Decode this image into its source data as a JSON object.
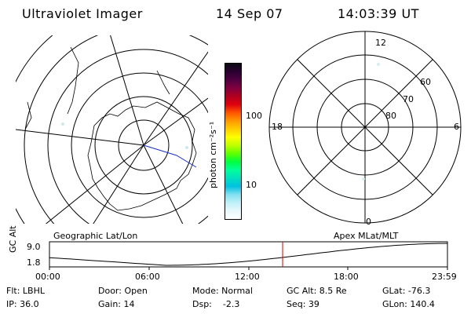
{
  "header": {
    "title": "Ultraviolet Imager",
    "date": "14 Sep 07",
    "time": "14:03:39 UT"
  },
  "left_panel": {
    "caption": "Geographic Lat/Lon"
  },
  "right_panel": {
    "caption": "Apex MLat/MLT",
    "mlt_labels": {
      "top": "12",
      "left": "18",
      "right": "6",
      "bottom": "0"
    },
    "lat_labels": [
      "60",
      "70",
      "80"
    ]
  },
  "colorbar": {
    "unit_label": "photon cm⁻²s⁻¹",
    "ticks": [
      "100",
      "10"
    ],
    "colors": [
      "#0a0a14",
      "#2a0030",
      "#500040",
      "#800040",
      "#b00020",
      "#e00010",
      "#ff5500",
      "#ff9900",
      "#ffcc00",
      "#ffff00",
      "#c0ff00",
      "#60ff00",
      "#00ff40",
      "#00ff99",
      "#00e0c0",
      "#00c0e0",
      "#80e0f0",
      "#c0f0f8",
      "#e8f8fc",
      "#ffffff"
    ]
  },
  "altitude_plot": {
    "ylabel": "GC Alt",
    "y_max": "9.0",
    "y_min": "1.8",
    "x_ticks": [
      "00:00",
      "06:00",
      "12:00",
      "18:00",
      "23:59"
    ],
    "marker_time_hours": 14.06
  },
  "footer": {
    "filter": "Flt: LBHL",
    "ip": "IP: 36.0",
    "door": "Door: Open",
    "gain": "Gain: 14",
    "mode": "Mode: Normal",
    "dsp": "Dsp:    -2.3",
    "gc_alt": "GC Alt: 8.5 Re",
    "seq": "Seq: 39",
    "glat": "GLat: -76.3",
    "glon": "GLon: 140.4"
  }
}
